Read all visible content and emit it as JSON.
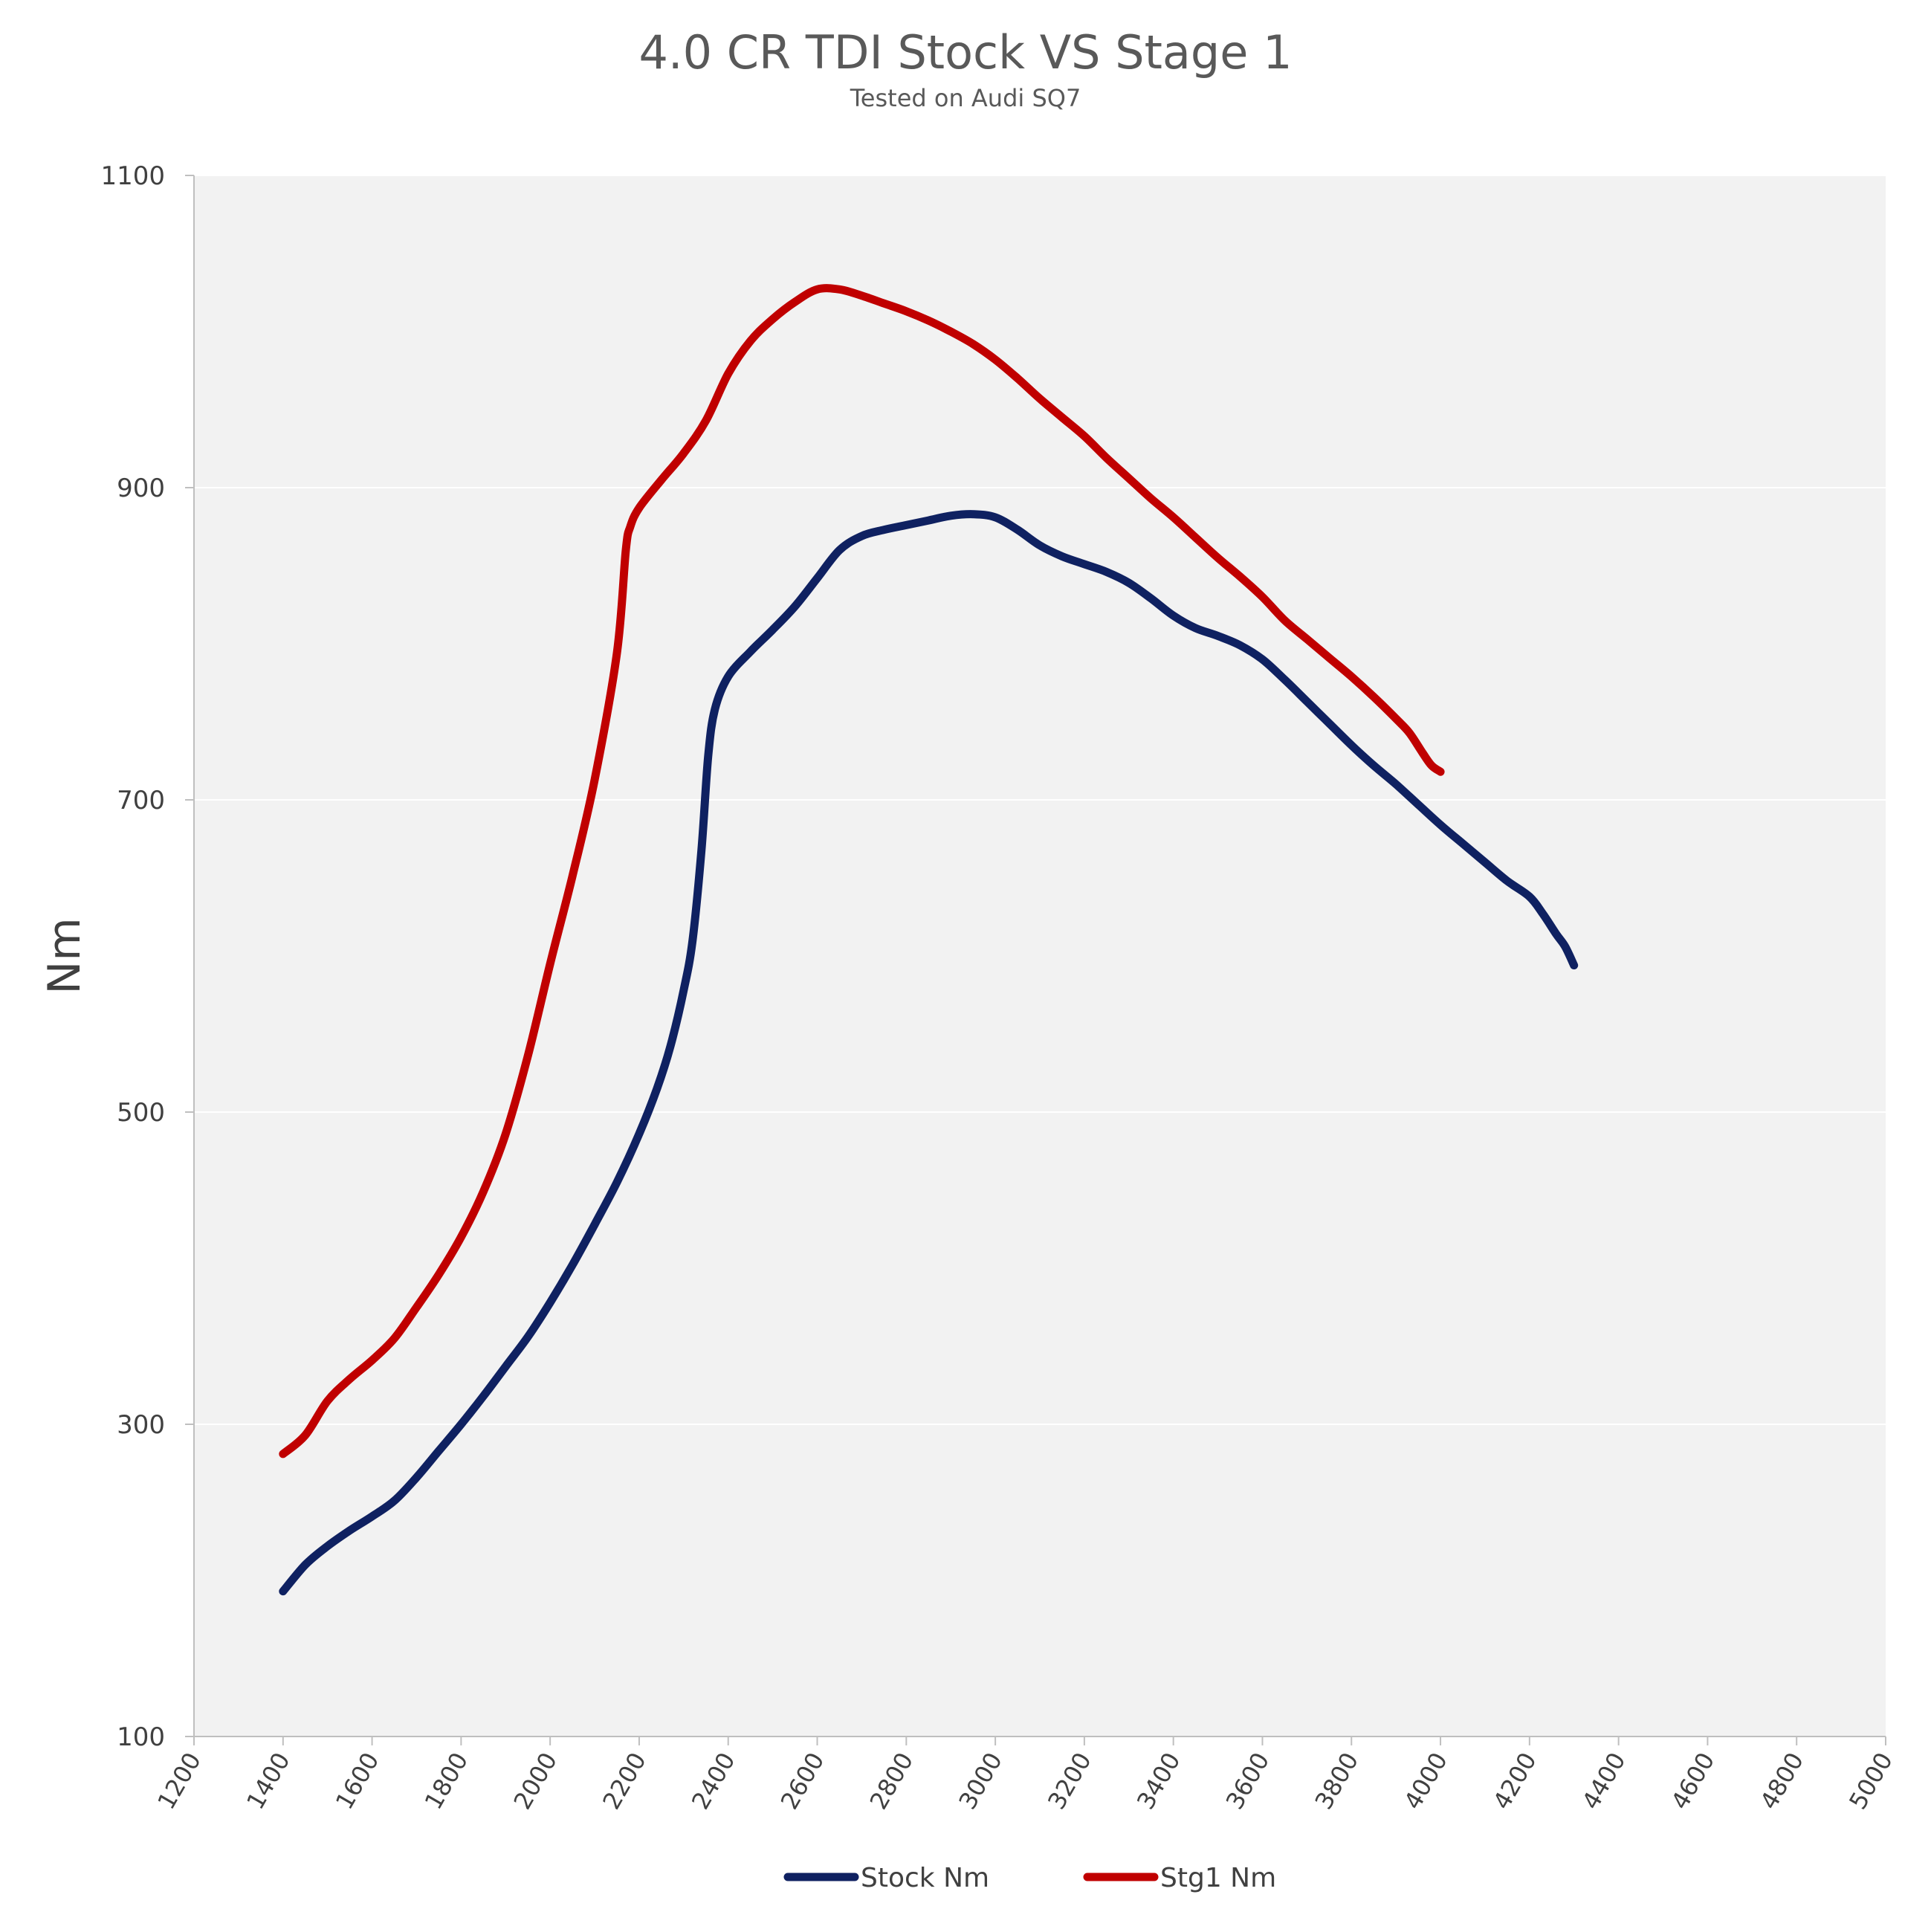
{
  "chart_data": {
    "type": "line",
    "title": "4.0 CR TDI Stock VS Stage 1",
    "subtitle": "Tested on Audi SQ7",
    "xlabel": "",
    "ylabel": "Nm",
    "xlim": [
      1200,
      5000
    ],
    "ylim": [
      100,
      1100
    ],
    "xticks": [
      "1200",
      "1400",
      "1600",
      "1800",
      "2000",
      "2200",
      "2400",
      "2600",
      "2800",
      "3000",
      "3200",
      "3400",
      "3600",
      "3800",
      "4000",
      "4200",
      "4400",
      "4600",
      "4800",
      "5000"
    ],
    "yticks": [
      "100",
      "300",
      "500",
      "700",
      "900",
      "1100"
    ],
    "grid": true,
    "legend_position": "bottom",
    "series": [
      {
        "name": "Stock Nm",
        "color": "#0f2161",
        "points": [
          [
            1400,
            193
          ],
          [
            1450,
            210
          ],
          [
            1500,
            222
          ],
          [
            1550,
            232
          ],
          [
            1600,
            241
          ],
          [
            1650,
            251
          ],
          [
            1700,
            266
          ],
          [
            1750,
            283
          ],
          [
            1800,
            300
          ],
          [
            1850,
            318
          ],
          [
            1900,
            337
          ],
          [
            1950,
            356
          ],
          [
            2000,
            378
          ],
          [
            2050,
            402
          ],
          [
            2100,
            428
          ],
          [
            2150,
            455
          ],
          [
            2200,
            486
          ],
          [
            2240,
            515
          ],
          [
            2270,
            542
          ],
          [
            2300,
            578
          ],
          [
            2320,
            610
          ],
          [
            2340,
            668
          ],
          [
            2355,
            728
          ],
          [
            2370,
            758
          ],
          [
            2400,
            779
          ],
          [
            2450,
            795
          ],
          [
            2500,
            809
          ],
          [
            2550,
            824
          ],
          [
            2600,
            842
          ],
          [
            2650,
            860
          ],
          [
            2700,
            869
          ],
          [
            2750,
            873
          ],
          [
            2800,
            876
          ],
          [
            2850,
            879
          ],
          [
            2900,
            882
          ],
          [
            2950,
            883
          ],
          [
            3000,
            881
          ],
          [
            3050,
            873
          ],
          [
            3100,
            863
          ],
          [
            3150,
            856
          ],
          [
            3200,
            851
          ],
          [
            3250,
            846
          ],
          [
            3300,
            839
          ],
          [
            3350,
            829
          ],
          [
            3400,
            818
          ],
          [
            3450,
            810
          ],
          [
            3500,
            805
          ],
          [
            3550,
            799
          ],
          [
            3600,
            790
          ],
          [
            3650,
            777
          ],
          [
            3700,
            763
          ],
          [
            3750,
            749
          ],
          [
            3800,
            735
          ],
          [
            3850,
            722
          ],
          [
            3900,
            710
          ],
          [
            3950,
            697
          ],
          [
            4000,
            684
          ],
          [
            4050,
            672
          ],
          [
            4100,
            660
          ],
          [
            4150,
            648
          ],
          [
            4200,
            638
          ],
          [
            4230,
            627
          ],
          [
            4260,
            614
          ],
          [
            4280,
            606
          ],
          [
            4300,
            594
          ]
        ]
      },
      {
        "name": "Stg1 Nm",
        "color": "#c00000",
        "points": [
          [
            1400,
            281
          ],
          [
            1450,
            293
          ],
          [
            1500,
            315
          ],
          [
            1550,
            329
          ],
          [
            1600,
            341
          ],
          [
            1650,
            355
          ],
          [
            1700,
            375
          ],
          [
            1750,
            396
          ],
          [
            1800,
            420
          ],
          [
            1850,
            449
          ],
          [
            1900,
            486
          ],
          [
            1950,
            536
          ],
          [
            2000,
            595
          ],
          [
            2050,
            651
          ],
          [
            2100,
            713
          ],
          [
            2150,
            794
          ],
          [
            2170,
            860
          ],
          [
            2180,
            875
          ],
          [
            2200,
            887
          ],
          [
            2250,
            905
          ],
          [
            2300,
            922
          ],
          [
            2350,
            943
          ],
          [
            2400,
            973
          ],
          [
            2450,
            994
          ],
          [
            2500,
            1008
          ],
          [
            2550,
            1019
          ],
          [
            2600,
            1027
          ],
          [
            2650,
            1027
          ],
          [
            2700,
            1023
          ],
          [
            2750,
            1018
          ],
          [
            2800,
            1013
          ],
          [
            2850,
            1007
          ],
          [
            2900,
            1000
          ],
          [
            2950,
            992
          ],
          [
            3000,
            982
          ],
          [
            3050,
            970
          ],
          [
            3100,
            957
          ],
          [
            3150,
            945
          ],
          [
            3200,
            933
          ],
          [
            3250,
            919
          ],
          [
            3300,
            906
          ],
          [
            3350,
            893
          ],
          [
            3400,
            881
          ],
          [
            3450,
            868
          ],
          [
            3500,
            855
          ],
          [
            3550,
            843
          ],
          [
            3600,
            830
          ],
          [
            3650,
            815
          ],
          [
            3700,
            803
          ],
          [
            3750,
            791
          ],
          [
            3800,
            779
          ],
          [
            3850,
            766
          ],
          [
            3900,
            752
          ],
          [
            3930,
            743
          ],
          [
            3960,
            730
          ],
          [
            3980,
            722
          ],
          [
            4000,
            718
          ]
        ]
      }
    ]
  }
}
